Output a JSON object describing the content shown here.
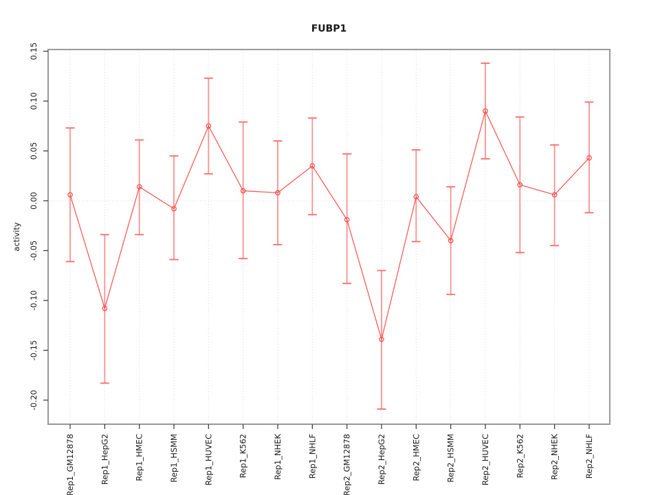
{
  "figure": {
    "title": "FUBP1",
    "ylabel": "activity",
    "xlabel": ""
  },
  "colors": {
    "background": "#ffffff",
    "series_line": "#f94f4f",
    "marker_stroke": "#f94f4f",
    "errorbar_line": "#fb9090",
    "errorbar_cap": "#fb6b6b",
    "grid": "#d9d9d9",
    "zero_line": "#d9d9d9",
    "box": "#999999",
    "tick": "#333333",
    "label_text": "#1a1a1a"
  },
  "chart_data": {
    "type": "line",
    "subtype": "points-with-error-bars",
    "title": "FUBP1",
    "xlabel": "",
    "ylabel": "activity",
    "legend_position": "none",
    "marker": "open-circle",
    "grid": {
      "vertical_per_category": true,
      "horizontal_zero_only": true,
      "style": "dotted"
    },
    "categories": [
      "Rep1_GM12878",
      "Rep1_HepG2",
      "Rep1_HMEC",
      "Rep1_HSMM",
      "Rep1_HUVEC",
      "Rep1_K562",
      "Rep1_NHEK",
      "Rep1_NHLF",
      "Rep2_GM12878",
      "Rep2_HepG2",
      "Rep2_HMEC",
      "Rep2_HSMM",
      "Rep2_HUVEC",
      "Rep2_K562",
      "Rep2_NHEK",
      "Rep2_NHLF"
    ],
    "series": [
      {
        "name": "activity",
        "values": [
          0.006,
          -0.108,
          0.014,
          -0.008,
          0.075,
          0.01,
          0.008,
          0.035,
          -0.019,
          -0.139,
          0.004,
          -0.04,
          0.09,
          0.016,
          0.006,
          0.043
        ],
        "error_low": [
          -0.061,
          -0.183,
          -0.034,
          -0.059,
          0.027,
          -0.058,
          -0.044,
          -0.014,
          -0.083,
          -0.209,
          -0.041,
          -0.094,
          0.042,
          -0.052,
          -0.045,
          -0.012
        ],
        "error_high": [
          0.073,
          -0.034,
          0.061,
          0.045,
          0.123,
          0.079,
          0.06,
          0.083,
          0.047,
          -0.07,
          0.051,
          0.014,
          0.138,
          0.084,
          0.056,
          0.099
        ]
      }
    ],
    "yticks": [
      0.15,
      0.1,
      0.05,
      0.0,
      -0.05,
      -0.1,
      -0.15,
      -0.2
    ],
    "ytick_labels": [
      "0.15",
      "0.10",
      "0.05",
      "0.00",
      "-0.05",
      "-0.10",
      "-0.15",
      "-0.20"
    ],
    "ylim": [
      -0.224,
      0.152
    ],
    "tick_label_rotation_deg": -90
  }
}
